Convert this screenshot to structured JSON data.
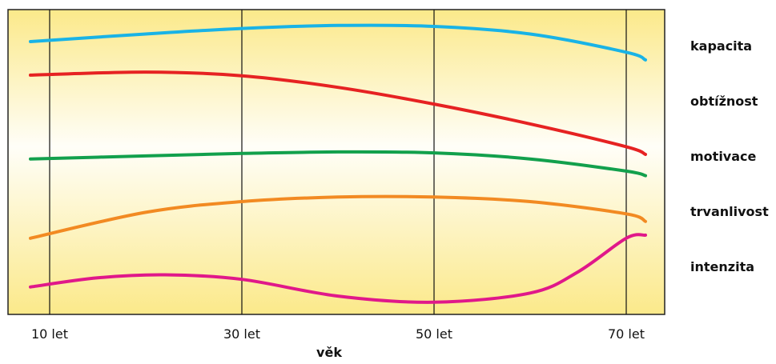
{
  "chart_data": {
    "type": "line",
    "xlabel": "věk",
    "ylabel": "",
    "x_ticks": [
      {
        "x": 10,
        "label": "10 let"
      },
      {
        "x": 30,
        "label": "30 let"
      },
      {
        "x": 50,
        "label": "50 let"
      },
      {
        "x": 70,
        "label": "70 let"
      }
    ],
    "xlim": [
      5,
      75
    ],
    "ylim": [
      0,
      100
    ],
    "y_ticks_shown": false,
    "grid": "vertical lines at ticks",
    "legend_placement": "right, labels aligned with curves",
    "background": "yellow gradient",
    "series": [
      {
        "name": "kapacita",
        "color": "#19b3e6",
        "x": [
          8,
          20,
          30,
          40,
          50,
          60,
          70,
          72
        ],
        "y": [
          89.5,
          92.0,
          93.8,
          94.8,
          94.5,
          92.0,
          86.0,
          83.5
        ]
      },
      {
        "name": "obtížnost",
        "color": "#e62222",
        "x": [
          8,
          20,
          30,
          40,
          50,
          60,
          70,
          72
        ],
        "y": [
          78.5,
          79.5,
          78.3,
          74.5,
          69.0,
          62.5,
          55.0,
          52.5
        ]
      },
      {
        "name": "motivace",
        "color": "#12a04c",
        "x": [
          8,
          20,
          30,
          40,
          50,
          60,
          70,
          72
        ],
        "y": [
          51.0,
          52.0,
          52.8,
          53.3,
          53.0,
          51.0,
          47.0,
          45.5
        ]
      },
      {
        "name": "trvanlivost",
        "color": "#f28a22",
        "x": [
          8,
          20,
          30,
          40,
          50,
          60,
          70,
          72
        ],
        "y": [
          25.0,
          33.5,
          37.0,
          38.5,
          38.5,
          37.0,
          33.0,
          30.5
        ]
      },
      {
        "name": "intenzita",
        "color": "#e0188a",
        "x": [
          8,
          15,
          22,
          30,
          40,
          50,
          60,
          65,
          70,
          72
        ],
        "y": [
          9.0,
          12.0,
          13.0,
          11.5,
          6.0,
          4.0,
          7.0,
          14.0,
          25.0,
          26.0
        ]
      }
    ]
  }
}
